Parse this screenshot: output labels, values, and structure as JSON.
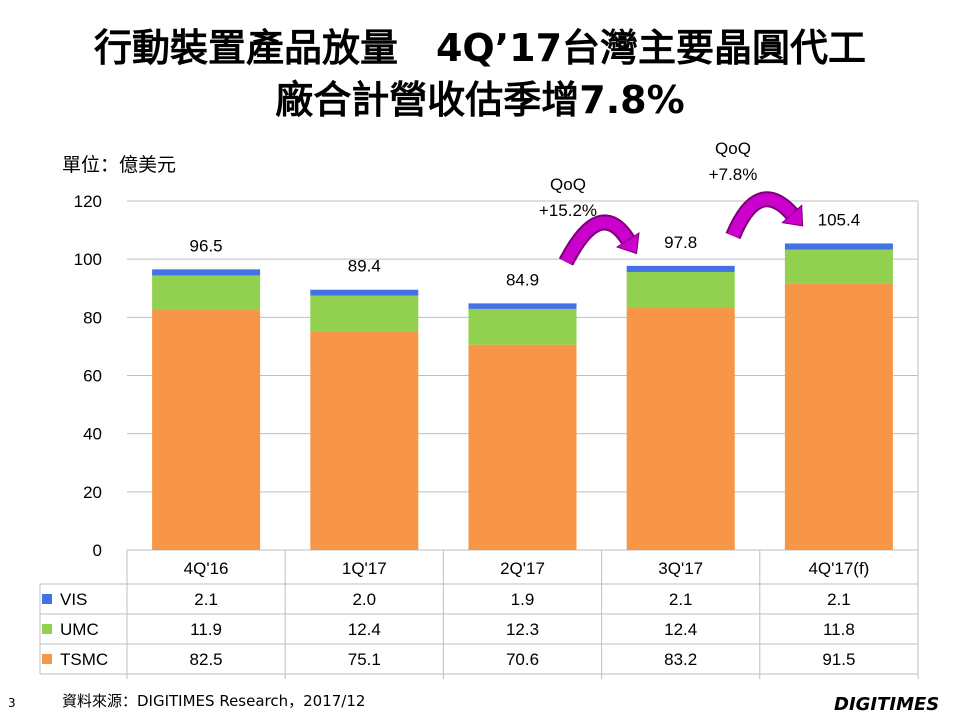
{
  "title_line1": "行動裝置產品放量　4Q’17台灣主要晶圓代工",
  "title_line2": "廠合計營收估季增7.8%",
  "unit_label": "單位：億美元",
  "source": "資料來源：DIGITIMES Research，2017/12",
  "page_number": "3",
  "logo": "DIGITIMES",
  "chart_data": {
    "type": "bar",
    "stacked": true,
    "categories": [
      "4Q'16",
      "1Q'17",
      "2Q'17",
      "3Q'17",
      "4Q'17(f)"
    ],
    "series": [
      {
        "name": "TSMC",
        "values": [
          82.5,
          75.1,
          70.6,
          83.2,
          91.5
        ],
        "color": "#F79646"
      },
      {
        "name": "UMC",
        "values": [
          11.9,
          12.4,
          12.3,
          12.4,
          11.8
        ],
        "color": "#92D050"
      },
      {
        "name": "VIS",
        "values": [
          2.1,
          2.0,
          1.9,
          2.1,
          2.1
        ],
        "color": "#4472E4"
      }
    ],
    "totals": [
      "96.5",
      "89.4",
      "84.9",
      "97.8",
      "105.4"
    ],
    "table_values": [
      [
        "2.1",
        "2.0",
        "1.9",
        "2.1",
        "2.1"
      ],
      [
        "11.9",
        "12.4",
        "12.3",
        "12.4",
        "11.8"
      ],
      [
        "82.5",
        "75.1",
        "70.6",
        "83.2",
        "91.5"
      ]
    ],
    "table_rows": [
      "VIS",
      "UMC",
      "TSMC"
    ],
    "y_ticks": [
      "0",
      "20",
      "40",
      "60",
      "80",
      "100",
      "120"
    ],
    "ylim": [
      0,
      120
    ],
    "grid": true,
    "legend": "data-table",
    "annotations": [
      {
        "line1": "QoQ",
        "line2": "+15.2%",
        "from": "2Q'17",
        "to": "3Q'17"
      },
      {
        "line1": "QoQ",
        "line2": "+7.8%",
        "from": "3Q'17",
        "to": "4Q'17(f)"
      }
    ],
    "arrow_color": "#CC00CC"
  }
}
